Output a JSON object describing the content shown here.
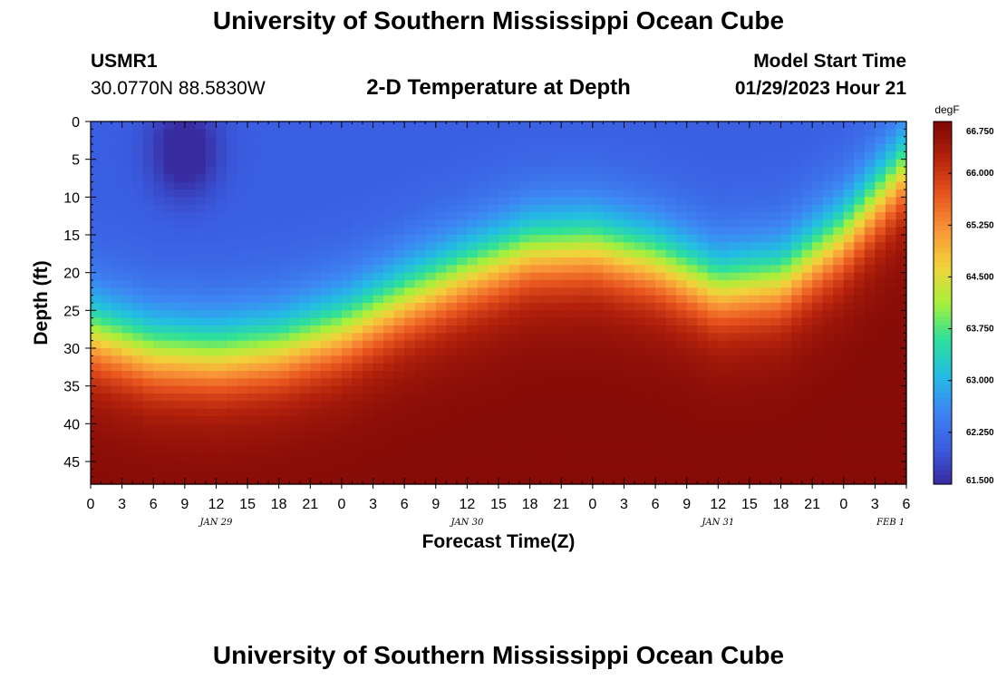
{
  "header": {
    "title": "University of Southern Mississippi Ocean Cube",
    "station_id": "USMR1",
    "station_coords": "30.0770N  88.5830W",
    "plot_title": "2-D Temperature at Depth",
    "model_start_label": "Model Start Time",
    "model_start_value": "01/29/2023 Hour 21"
  },
  "footer": {
    "title": "University of Southern Mississippi Ocean Cube"
  },
  "chart_data": {
    "type": "heatmap",
    "title": "2-D Temperature at Depth",
    "xlabel": "Forecast Time(Z)",
    "ylabel": "Depth (ft)",
    "x_unit": "forecast hour",
    "xlim": [
      0,
      78
    ],
    "ylim": [
      48,
      0
    ],
    "x_tick_labels": [
      "0",
      "3",
      "6",
      "9",
      "12",
      "15",
      "18",
      "21",
      "0",
      "3",
      "6",
      "9",
      "12",
      "15",
      "18",
      "21",
      "0",
      "3",
      "6",
      "9",
      "12",
      "15",
      "18",
      "21",
      "0",
      "3",
      "6"
    ],
    "y_ticks": [
      0,
      5,
      10,
      15,
      20,
      25,
      30,
      35,
      40,
      45
    ],
    "date_labels": [
      "JAN 29",
      "JAN 30",
      "JAN 31",
      "FEB 1"
    ],
    "colorbar": {
      "unit": "degF",
      "min": 61.5,
      "max": 66.75,
      "ticks": [
        "61.500",
        "62.250",
        "63.000",
        "63.750",
        "64.500",
        "65.250",
        "66.000",
        "66.750"
      ]
    },
    "isotherm_depth_ft": {
      "x": [
        0,
        6,
        12,
        18,
        24,
        30,
        36,
        42,
        48,
        54,
        60,
        66,
        72,
        78
      ],
      "y": [
        28,
        30.5,
        31,
        30,
        27.5,
        23.5,
        20,
        17,
        16.5,
        18.5,
        22,
        21,
        15,
        6
      ]
    },
    "cold_core": {
      "x": 9,
      "depth": 4,
      "value": 61.5
    },
    "surface_value": 62.05,
    "deep_value": 66.65
  },
  "colors": {
    "colormap": [
      "#382ba0",
      "#3a5ce0",
      "#3e85f4",
      "#23bce4",
      "#2de09a",
      "#a8f03a",
      "#f2d23a",
      "#f99538",
      "#e8541e",
      "#b4220c",
      "#7c0606"
    ]
  }
}
